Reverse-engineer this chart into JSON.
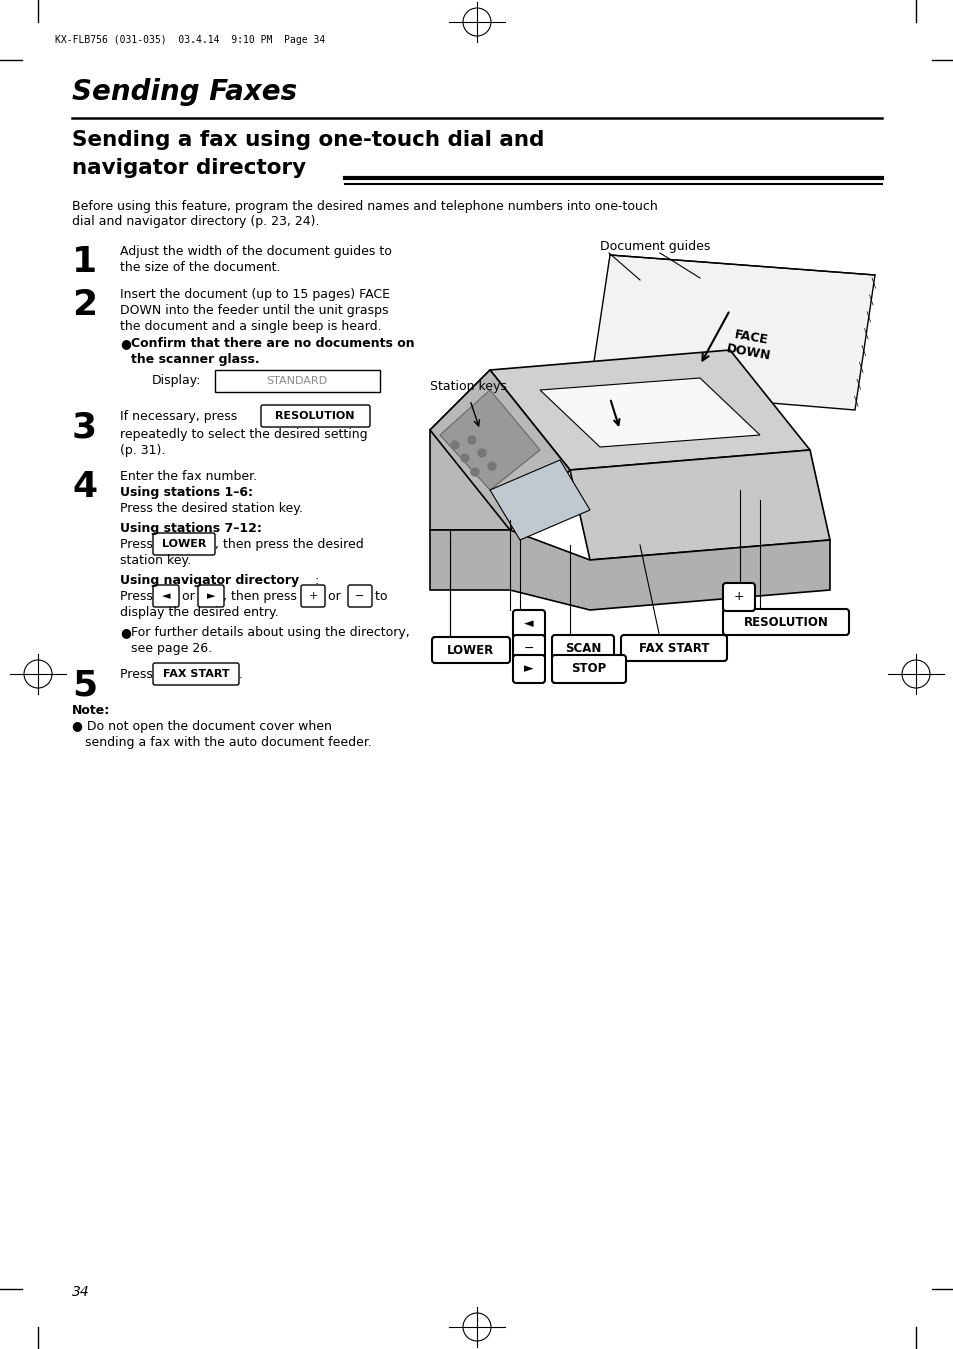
{
  "bg_color": "#ffffff",
  "page_number": "34",
  "header_text": "KX-FLB756 (031-035)  03.4.14  9:10 PM  Page 34",
  "title_italic_bold": "Sending Faxes",
  "section_title_line1": "Sending a fax using one-touch dial and",
  "section_title_line2": "navigator directory",
  "intro_text_line1": "Before using this feature, program the desired names and telephone numbers into one-touch",
  "intro_text_line2": "dial and navigator directory (p. 23, 24).",
  "font_color": "#000000",
  "doc_guides_label": "Document guides",
  "station_keys_label": "Station keys"
}
